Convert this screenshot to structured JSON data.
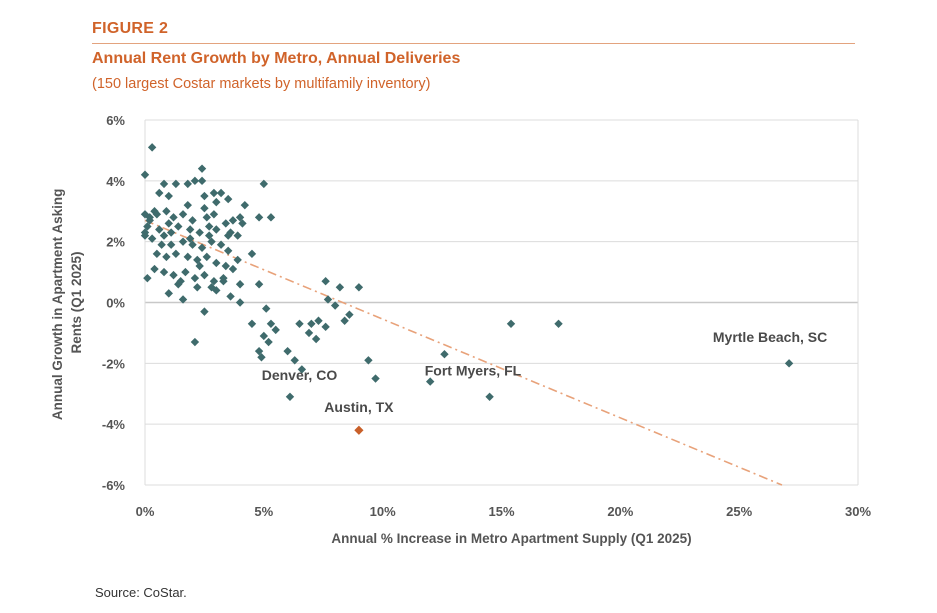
{
  "header": {
    "figure_label": "FIGURE 2",
    "title": "Annual Rent Growth by Metro, Annual Deliveries",
    "subtitle": "(150 largest Costar markets by multifamily inventory)"
  },
  "source": "Source: CoStar.",
  "colors": {
    "accent": "#d0632a",
    "point": "#3f6b6c",
    "highlight_point": "#c9602a",
    "trendline": "#e8a27a",
    "gridline": "#dcdcdc",
    "zero_line": "#c8c8c8"
  },
  "chart_data": {
    "type": "scatter",
    "title": "Annual Rent Growth by Metro, Annual Deliveries",
    "xlabel": "Annual % Increase in Metro Apartment Supply (Q1 2025)",
    "ylabel_lines": [
      "Annual Growth in Apartment Asking",
      "Rents (Q1 2025)"
    ],
    "xlim": [
      0,
      30
    ],
    "ylim": [
      -6,
      6
    ],
    "x_ticks": [
      0,
      5,
      10,
      15,
      20,
      25,
      30
    ],
    "x_tick_labels": [
      "0%",
      "5%",
      "10%",
      "15%",
      "20%",
      "25%",
      "30%"
    ],
    "y_ticks": [
      6,
      4,
      2,
      0,
      -2,
      -4,
      -6
    ],
    "y_tick_labels": [
      "6%",
      "4%",
      "2%",
      "0%",
      "-2%",
      "-4%",
      "-6%"
    ],
    "grid": "horizontal",
    "trendline": {
      "style": "dash-dot",
      "points": [
        [
          0,
          2.7
        ],
        [
          26.8,
          -6.0
        ]
      ]
    },
    "points": [
      [
        0.3,
        5.1
      ],
      [
        0.0,
        4.2
      ],
      [
        2.4,
        4.4
      ],
      [
        2.4,
        4.0
      ],
      [
        5.0,
        3.9
      ],
      [
        0.8,
        3.9
      ],
      [
        1.3,
        3.9
      ],
      [
        1.8,
        3.9
      ],
      [
        2.1,
        4.0
      ],
      [
        2.9,
        3.6
      ],
      [
        3.2,
        3.6
      ],
      [
        0.6,
        3.6
      ],
      [
        1.0,
        3.5
      ],
      [
        2.5,
        3.5
      ],
      [
        3.5,
        3.4
      ],
      [
        4.2,
        3.2
      ],
      [
        3.0,
        3.3
      ],
      [
        1.8,
        3.2
      ],
      [
        0.4,
        3.0
      ],
      [
        0.0,
        2.9
      ],
      [
        0.2,
        2.8
      ],
      [
        0.5,
        2.9
      ],
      [
        0.9,
        3.0
      ],
      [
        1.2,
        2.8
      ],
      [
        1.6,
        2.9
      ],
      [
        2.0,
        2.7
      ],
      [
        2.6,
        2.8
      ],
      [
        2.9,
        2.9
      ],
      [
        3.4,
        2.6
      ],
      [
        3.7,
        2.7
      ],
      [
        4.0,
        2.8
      ],
      [
        4.8,
        2.8
      ],
      [
        5.3,
        2.8
      ],
      [
        0.1,
        2.5
      ],
      [
        0.6,
        2.4
      ],
      [
        1.0,
        2.6
      ],
      [
        1.4,
        2.5
      ],
      [
        1.9,
        2.4
      ],
      [
        2.3,
        2.3
      ],
      [
        2.7,
        2.5
      ],
      [
        3.0,
        2.4
      ],
      [
        3.6,
        2.3
      ],
      [
        3.9,
        2.2
      ],
      [
        0.0,
        2.2
      ],
      [
        0.3,
        2.1
      ],
      [
        0.8,
        2.2
      ],
      [
        1.1,
        1.9
      ],
      [
        1.6,
        2.0
      ],
      [
        2.0,
        1.9
      ],
      [
        2.4,
        1.8
      ],
      [
        2.8,
        2.0
      ],
      [
        3.2,
        1.9
      ],
      [
        3.5,
        1.7
      ],
      [
        0.5,
        1.6
      ],
      [
        0.9,
        1.5
      ],
      [
        1.3,
        1.6
      ],
      [
        1.8,
        1.5
      ],
      [
        2.2,
        1.4
      ],
      [
        2.6,
        1.5
      ],
      [
        3.0,
        1.3
      ],
      [
        3.4,
        1.2
      ],
      [
        3.9,
        1.4
      ],
      [
        4.5,
        1.6
      ],
      [
        0.4,
        1.1
      ],
      [
        0.8,
        1.0
      ],
      [
        1.2,
        0.9
      ],
      [
        1.7,
        1.0
      ],
      [
        2.1,
        0.8
      ],
      [
        2.5,
        0.9
      ],
      [
        2.9,
        0.7
      ],
      [
        3.3,
        0.8
      ],
      [
        4.0,
        0.6
      ],
      [
        0.1,
        0.8
      ],
      [
        1.4,
        0.6
      ],
      [
        2.2,
        0.5
      ],
      [
        2.8,
        0.5
      ],
      [
        3.0,
        0.4
      ],
      [
        4.8,
        0.6
      ],
      [
        1.0,
        0.3
      ],
      [
        3.6,
        0.2
      ],
      [
        1.6,
        0.1
      ],
      [
        4.0,
        0.0
      ],
      [
        5.1,
        -0.2
      ],
      [
        2.5,
        -0.3
      ],
      [
        5.3,
        -0.7
      ],
      [
        4.5,
        -0.7
      ],
      [
        5.5,
        -0.9
      ],
      [
        6.5,
        -0.7
      ],
      [
        7.0,
        -0.7
      ],
      [
        5.0,
        -1.1
      ],
      [
        5.2,
        -1.3
      ],
      [
        4.8,
        -1.6
      ],
      [
        6.0,
        -1.6
      ],
      [
        4.9,
        -1.8
      ],
      [
        6.3,
        -1.9
      ],
      [
        2.1,
        -1.3
      ],
      [
        6.6,
        -2.2
      ],
      [
        6.1,
        -3.1
      ],
      [
        7.3,
        -0.6
      ],
      [
        6.9,
        -1.0
      ],
      [
        7.6,
        -0.8
      ],
      [
        7.2,
        -1.2
      ],
      [
        7.7,
        0.1
      ],
      [
        7.6,
        0.7
      ],
      [
        8.2,
        0.5
      ],
      [
        8.4,
        -0.6
      ],
      [
        8.0,
        -0.1
      ],
      [
        8.6,
        -0.4
      ],
      [
        9.0,
        0.5
      ],
      [
        9.4,
        -1.9
      ],
      [
        9.7,
        -2.5
      ],
      [
        12.6,
        -1.7
      ],
      [
        12.0,
        -2.6
      ],
      [
        14.5,
        -3.1
      ],
      [
        15.4,
        -0.7
      ],
      [
        17.4,
        -0.7
      ],
      [
        27.1,
        -2.0
      ],
      [
        0.0,
        2.3
      ],
      [
        1.1,
        2.3
      ],
      [
        3.5,
        2.2
      ],
      [
        4.1,
        2.6
      ],
      [
        2.3,
        1.2
      ],
      [
        1.5,
        0.7
      ],
      [
        0.2,
        2.7
      ],
      [
        2.7,
        2.2
      ],
      [
        3.7,
        1.1
      ],
      [
        1.9,
        2.1
      ],
      [
        0.7,
        1.9
      ],
      [
        2.5,
        3.1
      ],
      [
        3.3,
        0.7
      ]
    ],
    "highlighted": [
      {
        "label": "Austin, TX",
        "x": 9.0,
        "y": -4.2
      }
    ],
    "annotations": [
      {
        "label": "Denver, CO",
        "x": 6.5,
        "y": -2.55
      },
      {
        "label": "Austin, TX",
        "x": 9.0,
        "y": -3.6
      },
      {
        "label": "Fort Myers, FL",
        "x": 13.8,
        "y": -2.4
      },
      {
        "label": "Myrtle Beach, SC",
        "x": 26.3,
        "y": -1.3
      }
    ]
  }
}
